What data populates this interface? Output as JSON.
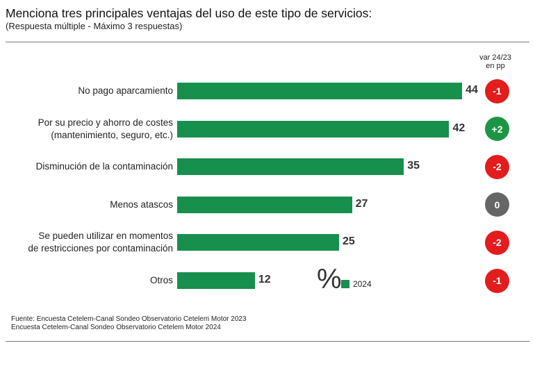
{
  "header": {
    "title": "Menciona tres principales ventajas del uso de este tipo de servicios:",
    "subtitle": "(Respuesta múltiple - Máximo 3 respuestas)"
  },
  "variation_header": {
    "line1": "var 24/23",
    "line2": "en pp"
  },
  "unit_symbol": "%",
  "legend": {
    "label": "2024",
    "color": "#16904c"
  },
  "colors": {
    "bar": "#16904c",
    "negative": "#e11d1d",
    "positive": "#1c9645",
    "neutral": "#666666"
  },
  "source": {
    "line1": "Fuente: Encuesta Cetelem-Canal Sondeo Observatorio Cetelem Motor 2023",
    "line2": "Encuesta Cetelem-Canal Sondeo Observatorio Cetelem Motor 2024"
  },
  "chart_data": {
    "type": "bar",
    "orientation": "horizontal",
    "title": "Menciona tres principales ventajas del uso de este tipo de servicios:",
    "subtitle": "(Respuesta múltiple - Máximo 3 respuestas)",
    "categories": [
      [
        "No pago aparcamiento"
      ],
      [
        "Por su precio y ahorro de costes",
        "(mantenimiento, seguro, etc.)"
      ],
      [
        "Disminución de la contaminación"
      ],
      [
        "Menos atascos"
      ],
      [
        "Se pueden utilizar en momentos",
        "de restricciones por contaminación"
      ],
      [
        "Otros"
      ]
    ],
    "series": [
      {
        "name": "2024",
        "values": [
          44,
          42,
          35,
          27,
          25,
          12
        ]
      }
    ],
    "variation": [
      "-1",
      "+2",
      "-2",
      "0",
      "-2",
      "-1"
    ],
    "xlim": [
      0,
      50
    ],
    "grid": false,
    "legend_position": "bottom-right"
  }
}
